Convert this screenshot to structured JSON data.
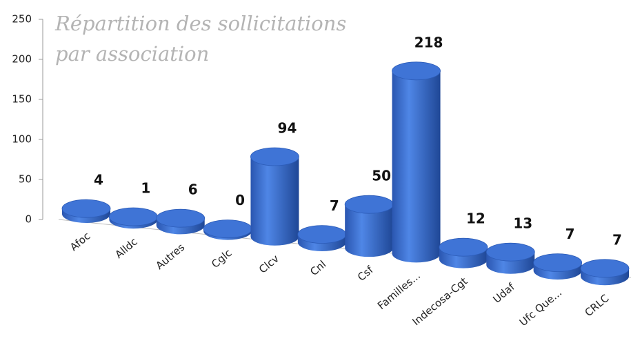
{
  "chart_data": {
    "type": "bar3d",
    "title": "Répartition des sollicitations par association",
    "categories": [
      "Afoc",
      "Alldc",
      "Autres",
      "Cglc",
      "Clcv",
      "Cnl",
      "Csf",
      "Familles...",
      "Indecosa-Cgt",
      "Udaf",
      "Ufc Que...",
      "CRLC"
    ],
    "values": [
      4,
      1,
      6,
      0,
      94,
      7,
      50,
      218,
      12,
      13,
      7,
      7
    ],
    "color": "#3a6fd0",
    "ylim": [
      0,
      250
    ],
    "yticks": [
      0,
      50,
      100,
      150,
      200,
      250
    ]
  }
}
